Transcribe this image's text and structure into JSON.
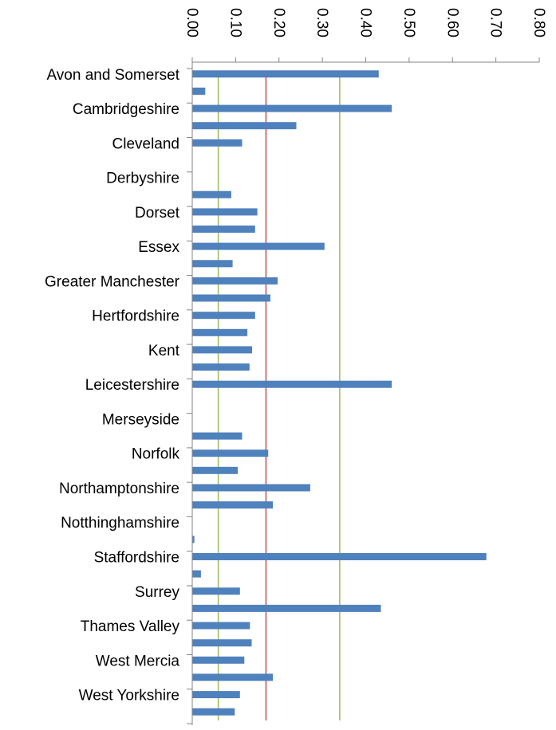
{
  "chart_data": {
    "type": "bar",
    "orientation": "horizontal",
    "categories": [
      "Avon and Somerset",
      "",
      "Cambridgeshire",
      "",
      "Cleveland",
      "",
      "Derbyshire",
      "",
      "Dorset",
      "",
      "Essex",
      "",
      "Greater Manchester",
      "",
      "Hertfordshire",
      "",
      "Kent",
      "",
      "Leicestershire",
      "",
      "Merseyside",
      "",
      "Norfolk",
      "",
      "Northamptonshire",
      "",
      "Notthinghamshire",
      "",
      "Staffordshire",
      "",
      "Surrey",
      "",
      "Thames Valley",
      "",
      "West Mercia",
      "",
      "West Yorkshire",
      ""
    ],
    "values": [
      0.43,
      0.03,
      0.46,
      0.24,
      0.115,
      0,
      0,
      0.09,
      0.15,
      0.145,
      0.305,
      0.093,
      0.197,
      0.18,
      0.145,
      0.127,
      0.138,
      0.132,
      0.46,
      0,
      0,
      0.115,
      0.175,
      0.105,
      0.272,
      0.186,
      0,
      0.005,
      0.678,
      0.02,
      0.11,
      0.435,
      0.133,
      0.137,
      0.12,
      0.186,
      0.11,
      0.098
    ],
    "xlim": [
      0,
      0.8
    ],
    "x_ticks": [
      "0.00",
      "0.10",
      "0.20",
      "0.30",
      "0.40",
      "0.50",
      "0.60",
      "0.70",
      "0.80"
    ],
    "x_tick_values": [
      0,
      0.1,
      0.2,
      0.3,
      0.4,
      0.5,
      0.6,
      0.7,
      0.8
    ],
    "axis_position": "top",
    "tick_label_rotation": 90,
    "reference_lines": [
      {
        "value": 0.06,
        "color": "#9BBB59"
      },
      {
        "value": 0.17,
        "color": "#C0504D"
      },
      {
        "value": 0.34,
        "color": "#9BBB59"
      }
    ],
    "bar_color": "#4F81BD",
    "grid": false,
    "legend": "none",
    "title": "",
    "xlabel": "",
    "ylabel": ""
  }
}
